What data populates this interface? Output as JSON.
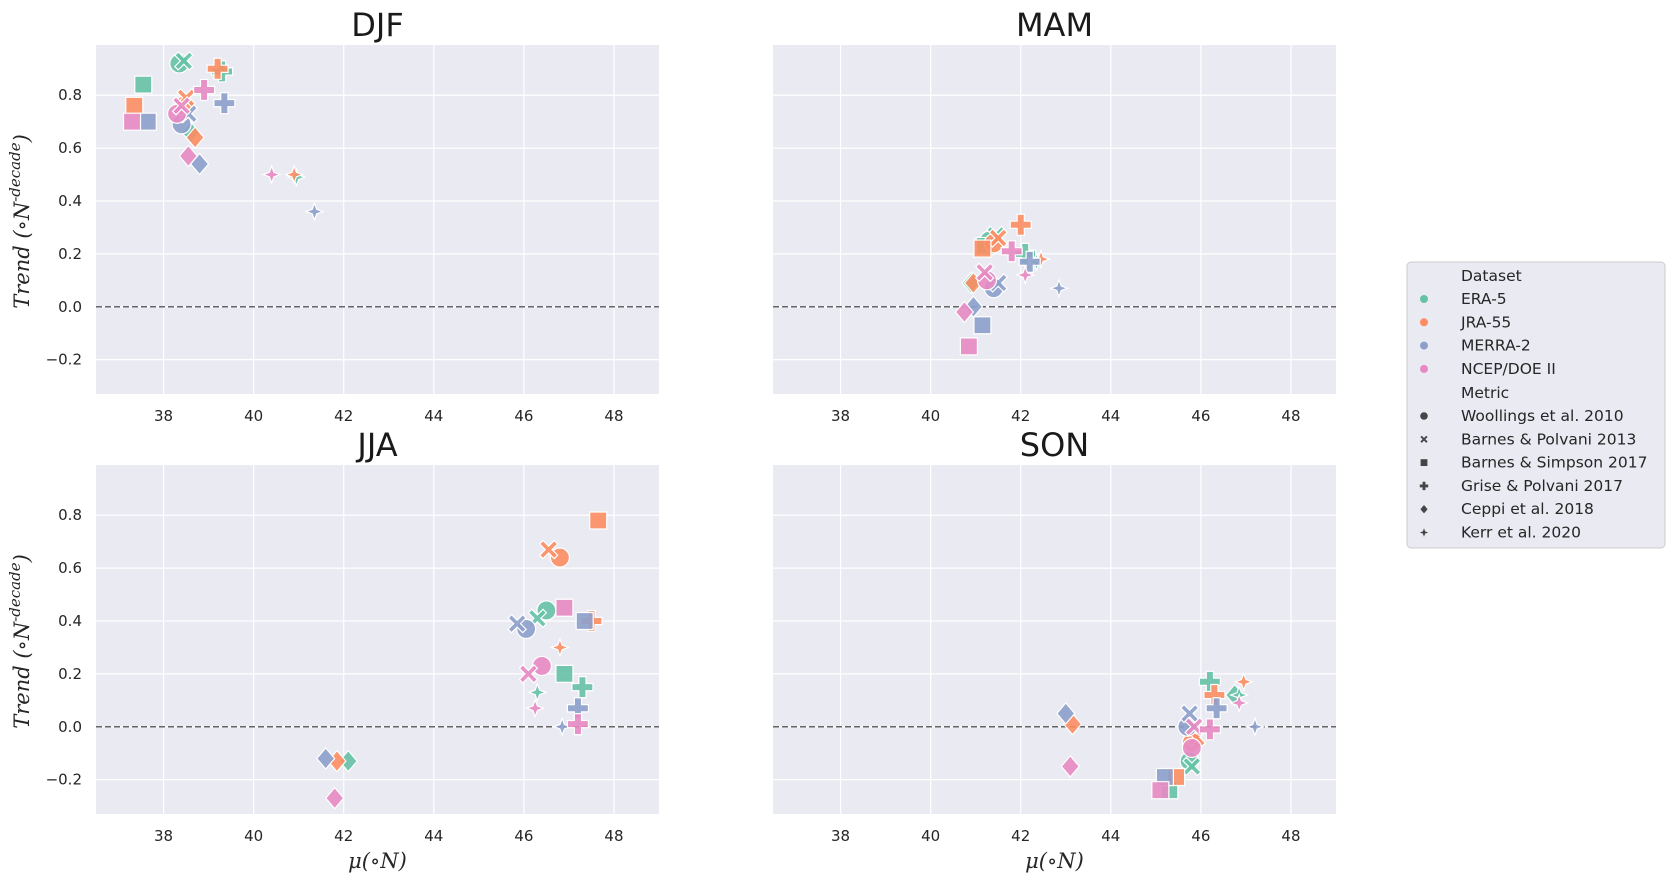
{
  "colors": {
    "ERA-5": "#66c2a5",
    "JRA-55": "#fc8d62",
    "MERRA-2": "#8da0cb",
    "NCEP/DOE II": "#e78ac3",
    "plot_bg": "#eaeaf2",
    "zero_line": "#666666"
  },
  "legend": {
    "dataset_title": "Dataset",
    "datasets": [
      "ERA-5",
      "JRA-55",
      "MERRA-2",
      "NCEP/DOE II"
    ],
    "metric_title": "Metric",
    "metrics": [
      {
        "label": "Woollings et al. 2010",
        "marker": "circle"
      },
      {
        "label": "Barnes & Polvani 2013",
        "marker": "x"
      },
      {
        "label": "Barnes & Simpson 2017",
        "marker": "square"
      },
      {
        "label": "Grise & Polvani 2017",
        "marker": "plus"
      },
      {
        "label": "Ceppi et al. 2018",
        "marker": "diamond"
      },
      {
        "label": "Kerr et al. 2020",
        "marker": "star"
      }
    ]
  },
  "chart_data": [
    {
      "type": "scatter",
      "title": "DJF",
      "ylabel": "Trend (∘N^{-decade})",
      "xlabel": "",
      "xlim": [
        36.5,
        49
      ],
      "ylim": [
        -0.33,
        0.99
      ],
      "xticks": [
        38,
        40,
        42,
        44,
        46,
        48
      ],
      "yticks": [
        -0.2,
        0.0,
        0.2,
        0.4,
        0.6,
        0.8
      ],
      "show_xticklabels": true,
      "show_yticklabels": true,
      "hline": 0,
      "points": [
        {
          "dataset": "ERA-5",
          "metric": "Woollings et al. 2010",
          "x": 38.35,
          "y": 0.92
        },
        {
          "dataset": "ERA-5",
          "metric": "Barnes & Polvani 2013",
          "x": 38.45,
          "y": 0.93
        },
        {
          "dataset": "ERA-5",
          "metric": "Barnes & Simpson 2017",
          "x": 37.55,
          "y": 0.84
        },
        {
          "dataset": "ERA-5",
          "metric": "Grise & Polvani 2017",
          "x": 39.3,
          "y": 0.89
        },
        {
          "dataset": "ERA-5",
          "metric": "Ceppi et al. 2018",
          "x": 38.6,
          "y": 0.66
        },
        {
          "dataset": "ERA-5",
          "metric": "Kerr et al. 2020",
          "x": 40.95,
          "y": 0.49
        },
        {
          "dataset": "JRA-55",
          "metric": "Woollings et al. 2010",
          "x": 38.45,
          "y": 0.76
        },
        {
          "dataset": "JRA-55",
          "metric": "Barnes & Polvani 2013",
          "x": 38.5,
          "y": 0.79
        },
        {
          "dataset": "JRA-55",
          "metric": "Barnes & Simpson 2017",
          "x": 37.35,
          "y": 0.76
        },
        {
          "dataset": "JRA-55",
          "metric": "Grise & Polvani 2017",
          "x": 39.2,
          "y": 0.9
        },
        {
          "dataset": "JRA-55",
          "metric": "Ceppi et al. 2018",
          "x": 38.7,
          "y": 0.64
        },
        {
          "dataset": "JRA-55",
          "metric": "Kerr et al. 2020",
          "x": 40.9,
          "y": 0.5
        },
        {
          "dataset": "MERRA-2",
          "metric": "Woollings et al. 2010",
          "x": 38.4,
          "y": 0.69
        },
        {
          "dataset": "MERRA-2",
          "metric": "Barnes & Polvani 2013",
          "x": 38.55,
          "y": 0.73
        },
        {
          "dataset": "MERRA-2",
          "metric": "Barnes & Simpson 2017",
          "x": 37.65,
          "y": 0.7
        },
        {
          "dataset": "MERRA-2",
          "metric": "Grise & Polvani 2017",
          "x": 39.35,
          "y": 0.77
        },
        {
          "dataset": "MERRA-2",
          "metric": "Ceppi et al. 2018",
          "x": 38.8,
          "y": 0.54
        },
        {
          "dataset": "MERRA-2",
          "metric": "Kerr et al. 2020",
          "x": 41.35,
          "y": 0.36
        },
        {
          "dataset": "NCEP/DOE II",
          "metric": "Woollings et al. 2010",
          "x": 38.3,
          "y": 0.73
        },
        {
          "dataset": "NCEP/DOE II",
          "metric": "Barnes & Polvani 2013",
          "x": 38.4,
          "y": 0.76
        },
        {
          "dataset": "NCEP/DOE II",
          "metric": "Barnes & Simpson 2017",
          "x": 37.3,
          "y": 0.7
        },
        {
          "dataset": "NCEP/DOE II",
          "metric": "Grise & Polvani 2017",
          "x": 38.9,
          "y": 0.82
        },
        {
          "dataset": "NCEP/DOE II",
          "metric": "Ceppi et al. 2018",
          "x": 38.55,
          "y": 0.57
        },
        {
          "dataset": "NCEP/DOE II",
          "metric": "Kerr et al. 2020",
          "x": 40.4,
          "y": 0.5
        }
      ]
    },
    {
      "type": "scatter",
      "title": "MAM",
      "ylabel": "",
      "xlabel": "",
      "xlim": [
        36.5,
        49
      ],
      "ylim": [
        -0.33,
        0.99
      ],
      "xticks": [
        38,
        40,
        42,
        44,
        46,
        48
      ],
      "yticks": [
        -0.2,
        0.0,
        0.2,
        0.4,
        0.6,
        0.8
      ],
      "show_xticklabels": true,
      "show_yticklabels": false,
      "hline": 0,
      "points": [
        {
          "dataset": "ERA-5",
          "metric": "Woollings et al. 2010",
          "x": 41.3,
          "y": 0.25
        },
        {
          "dataset": "ERA-5",
          "metric": "Barnes & Polvani 2013",
          "x": 41.45,
          "y": 0.27
        },
        {
          "dataset": "ERA-5",
          "metric": "Barnes & Simpson 2017",
          "x": 41.2,
          "y": 0.23
        },
        {
          "dataset": "ERA-5",
          "metric": "Grise & Polvani 2017",
          "x": 42.1,
          "y": 0.2
        },
        {
          "dataset": "ERA-5",
          "metric": "Ceppi et al. 2018",
          "x": 40.9,
          "y": 0.09
        },
        {
          "dataset": "ERA-5",
          "metric": "Kerr et al. 2020",
          "x": 42.35,
          "y": 0.17
        },
        {
          "dataset": "JRA-55",
          "metric": "Woollings et al. 2010",
          "x": 41.4,
          "y": 0.24
        },
        {
          "dataset": "JRA-55",
          "metric": "Barnes & Polvani 2013",
          "x": 41.5,
          "y": 0.26
        },
        {
          "dataset": "JRA-55",
          "metric": "Barnes & Simpson 2017",
          "x": 41.15,
          "y": 0.22
        },
        {
          "dataset": "JRA-55",
          "metric": "Grise & Polvani 2017",
          "x": 42.0,
          "y": 0.31
        },
        {
          "dataset": "JRA-55",
          "metric": "Ceppi et al. 2018",
          "x": 40.95,
          "y": 0.09
        },
        {
          "dataset": "JRA-55",
          "metric": "Kerr et al. 2020",
          "x": 42.45,
          "y": 0.18
        },
        {
          "dataset": "MERRA-2",
          "metric": "Woollings et al. 2010",
          "x": 41.4,
          "y": 0.07
        },
        {
          "dataset": "MERRA-2",
          "metric": "Barnes & Polvani 2013",
          "x": 41.5,
          "y": 0.09
        },
        {
          "dataset": "MERRA-2",
          "metric": "Barnes & Simpson 2017",
          "x": 41.15,
          "y": -0.07
        },
        {
          "dataset": "MERRA-2",
          "metric": "Grise & Polvani 2017",
          "x": 42.2,
          "y": 0.17
        },
        {
          "dataset": "MERRA-2",
          "metric": "Ceppi et al. 2018",
          "x": 40.95,
          "y": 0.0
        },
        {
          "dataset": "MERRA-2",
          "metric": "Kerr et al. 2020",
          "x": 42.85,
          "y": 0.07
        },
        {
          "dataset": "NCEP/DOE II",
          "metric": "Woollings et al. 2010",
          "x": 41.25,
          "y": 0.1
        },
        {
          "dataset": "NCEP/DOE II",
          "metric": "Barnes & Polvani 2013",
          "x": 41.2,
          "y": 0.13
        },
        {
          "dataset": "NCEP/DOE II",
          "metric": "Barnes & Simpson 2017",
          "x": 40.85,
          "y": -0.15
        },
        {
          "dataset": "NCEP/DOE II",
          "metric": "Grise & Polvani 2017",
          "x": 41.8,
          "y": 0.21
        },
        {
          "dataset": "NCEP/DOE II",
          "metric": "Ceppi et al. 2018",
          "x": 40.75,
          "y": -0.02
        },
        {
          "dataset": "NCEP/DOE II",
          "metric": "Kerr et al. 2020",
          "x": 42.1,
          "y": 0.12
        }
      ]
    },
    {
      "type": "scatter",
      "title": "JJA",
      "ylabel": "Trend (∘N^{-decade})",
      "xlabel": "μ(∘N)",
      "xlim": [
        36.5,
        49
      ],
      "ylim": [
        -0.33,
        0.99
      ],
      "xticks": [
        38,
        40,
        42,
        44,
        46,
        48
      ],
      "yticks": [
        -0.2,
        0.0,
        0.2,
        0.4,
        0.6,
        0.8
      ],
      "show_xticklabels": true,
      "show_yticklabels": true,
      "hline": 0,
      "points": [
        {
          "dataset": "ERA-5",
          "metric": "Woollings et al. 2010",
          "x": 46.5,
          "y": 0.44
        },
        {
          "dataset": "ERA-5",
          "metric": "Barnes & Polvani 2013",
          "x": 46.3,
          "y": 0.41
        },
        {
          "dataset": "ERA-5",
          "metric": "Barnes & Simpson 2017",
          "x": 46.9,
          "y": 0.2
        },
        {
          "dataset": "ERA-5",
          "metric": "Grise & Polvani 2017",
          "x": 47.3,
          "y": 0.15
        },
        {
          "dataset": "ERA-5",
          "metric": "Ceppi et al. 2018",
          "x": 42.1,
          "y": -0.13
        },
        {
          "dataset": "ERA-5",
          "metric": "Kerr et al. 2020",
          "x": 46.3,
          "y": 0.13
        },
        {
          "dataset": "JRA-55",
          "metric": "Woollings et al. 2010",
          "x": 46.8,
          "y": 0.64
        },
        {
          "dataset": "JRA-55",
          "metric": "Barnes & Polvani 2013",
          "x": 46.55,
          "y": 0.67
        },
        {
          "dataset": "JRA-55",
          "metric": "Barnes & Simpson 2017",
          "x": 47.65,
          "y": 0.78
        },
        {
          "dataset": "JRA-55",
          "metric": "Grise & Polvani 2017",
          "x": 47.5,
          "y": 0.4
        },
        {
          "dataset": "JRA-55",
          "metric": "Ceppi et al. 2018",
          "x": 41.85,
          "y": -0.13
        },
        {
          "dataset": "JRA-55",
          "metric": "Kerr et al. 2020",
          "x": 46.8,
          "y": 0.3
        },
        {
          "dataset": "MERRA-2",
          "metric": "Woollings et al. 2010",
          "x": 46.05,
          "y": 0.37
        },
        {
          "dataset": "MERRA-2",
          "metric": "Barnes & Polvani 2013",
          "x": 45.85,
          "y": 0.39
        },
        {
          "dataset": "MERRA-2",
          "metric": "Barnes & Simpson 2017",
          "x": 47.35,
          "y": 0.4
        },
        {
          "dataset": "MERRA-2",
          "metric": "Grise & Polvani 2017",
          "x": 47.2,
          "y": 0.07
        },
        {
          "dataset": "MERRA-2",
          "metric": "Ceppi et al. 2018",
          "x": 41.6,
          "y": -0.12
        },
        {
          "dataset": "MERRA-2",
          "metric": "Kerr et al. 2020",
          "x": 46.85,
          "y": 0.0
        },
        {
          "dataset": "NCEP/DOE II",
          "metric": "Woollings et al. 2010",
          "x": 46.4,
          "y": 0.23
        },
        {
          "dataset": "NCEP/DOE II",
          "metric": "Barnes & Polvani 2013",
          "x": 46.1,
          "y": 0.2
        },
        {
          "dataset": "NCEP/DOE II",
          "metric": "Barnes & Simpson 2017",
          "x": 46.9,
          "y": 0.45
        },
        {
          "dataset": "NCEP/DOE II",
          "metric": "Grise & Polvani 2017",
          "x": 47.2,
          "y": 0.01
        },
        {
          "dataset": "NCEP/DOE II",
          "metric": "Ceppi et al. 2018",
          "x": 41.8,
          "y": -0.27
        },
        {
          "dataset": "NCEP/DOE II",
          "metric": "Kerr et al. 2020",
          "x": 46.25,
          "y": 0.07
        }
      ]
    },
    {
      "type": "scatter",
      "title": "SON",
      "ylabel": "",
      "xlabel": "μ(∘N)",
      "xlim": [
        36.5,
        49
      ],
      "ylim": [
        -0.33,
        0.99
      ],
      "xticks": [
        38,
        40,
        42,
        44,
        46,
        48
      ],
      "yticks": [
        -0.2,
        0.0,
        0.2,
        0.4,
        0.6,
        0.8
      ],
      "show_xticklabels": true,
      "show_yticklabels": false,
      "hline": 0,
      "points": [
        {
          "dataset": "ERA-5",
          "metric": "Woollings et al. 2010",
          "x": 45.75,
          "y": -0.13
        },
        {
          "dataset": "ERA-5",
          "metric": "Barnes & Polvani 2013",
          "x": 45.8,
          "y": -0.15
        },
        {
          "dataset": "ERA-5",
          "metric": "Barnes & Simpson 2017",
          "x": 45.3,
          "y": -0.24
        },
        {
          "dataset": "ERA-5",
          "metric": "Grise & Polvani 2017",
          "x": 46.2,
          "y": 0.17
        },
        {
          "dataset": "ERA-5",
          "metric": "Ceppi et al. 2018",
          "x": 46.75,
          "y": 0.12
        },
        {
          "dataset": "ERA-5",
          "metric": "Kerr et al. 2020",
          "x": 46.85,
          "y": 0.12
        },
        {
          "dataset": "JRA-55",
          "metric": "Woollings et al. 2010",
          "x": 45.8,
          "y": -0.06
        },
        {
          "dataset": "JRA-55",
          "metric": "Barnes & Polvani 2013",
          "x": 45.9,
          "y": -0.04
        },
        {
          "dataset": "JRA-55",
          "metric": "Barnes & Simpson 2017",
          "x": 45.45,
          "y": -0.19
        },
        {
          "dataset": "JRA-55",
          "metric": "Grise & Polvani 2017",
          "x": 46.3,
          "y": 0.12
        },
        {
          "dataset": "JRA-55",
          "metric": "Ceppi et al. 2018",
          "x": 43.15,
          "y": 0.01
        },
        {
          "dataset": "JRA-55",
          "metric": "Kerr et al. 2020",
          "x": 46.95,
          "y": 0.17
        },
        {
          "dataset": "MERRA-2",
          "metric": "Woollings et al. 2010",
          "x": 45.7,
          "y": 0.0
        },
        {
          "dataset": "MERRA-2",
          "metric": "Barnes & Polvani 2013",
          "x": 45.75,
          "y": 0.05
        },
        {
          "dataset": "MERRA-2",
          "metric": "Barnes & Simpson 2017",
          "x": 45.2,
          "y": -0.19
        },
        {
          "dataset": "MERRA-2",
          "metric": "Grise & Polvani 2017",
          "x": 46.35,
          "y": 0.07
        },
        {
          "dataset": "MERRA-2",
          "metric": "Ceppi et al. 2018",
          "x": 43.0,
          "y": 0.05
        },
        {
          "dataset": "MERRA-2",
          "metric": "Kerr et al. 2020",
          "x": 47.2,
          "y": 0.0
        },
        {
          "dataset": "NCEP/DOE II",
          "metric": "Woollings et al. 2010",
          "x": 45.8,
          "y": -0.08
        },
        {
          "dataset": "NCEP/DOE II",
          "metric": "Barnes & Polvani 2013",
          "x": 45.85,
          "y": 0.0
        },
        {
          "dataset": "NCEP/DOE II",
          "metric": "Barnes & Simpson 2017",
          "x": 45.1,
          "y": -0.24
        },
        {
          "dataset": "NCEP/DOE II",
          "metric": "Grise & Polvani 2017",
          "x": 46.2,
          "y": -0.01
        },
        {
          "dataset": "NCEP/DOE II",
          "metric": "Ceppi et al. 2018",
          "x": 43.1,
          "y": -0.15
        },
        {
          "dataset": "NCEP/DOE II",
          "metric": "Kerr et al. 2020",
          "x": 46.85,
          "y": 0.09
        }
      ]
    }
  ]
}
